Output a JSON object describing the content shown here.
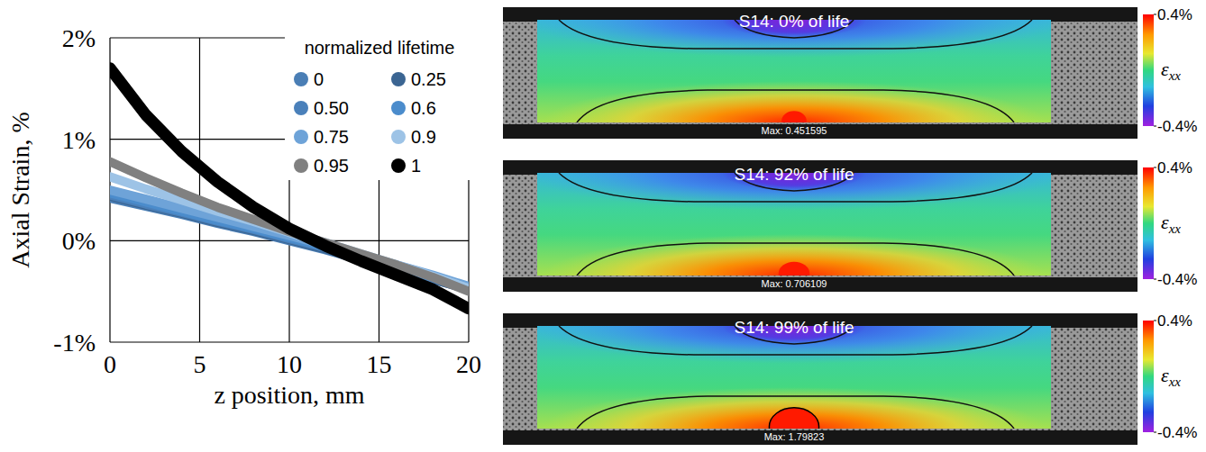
{
  "chart_data": {
    "type": "line",
    "x_label": "z position, mm",
    "y_label": "Axial Strain, %",
    "legend_title": "normalized lifetime",
    "x": [
      0,
      2,
      4,
      6,
      8,
      10,
      12,
      14,
      16,
      18,
      20
    ],
    "series": [
      {
        "name": "0",
        "color": "#4a7eb5",
        "values": [
          0.42,
          0.34,
          0.26,
          0.17,
          0.09,
          0.0,
          -0.09,
          -0.19,
          -0.29,
          -0.38,
          -0.48
        ]
      },
      {
        "name": "0.25",
        "color": "#3b6592",
        "values": [
          0.44,
          0.35,
          0.27,
          0.18,
          0.1,
          0.01,
          -0.08,
          -0.18,
          -0.28,
          -0.38,
          -0.48
        ]
      },
      {
        "name": "0.50",
        "color": "#4a80ba",
        "values": [
          0.45,
          0.36,
          0.28,
          0.19,
          0.11,
          0.02,
          -0.07,
          -0.17,
          -0.27,
          -0.37,
          -0.47
        ]
      },
      {
        "name": "0.6",
        "color": "#4b8ccc",
        "values": [
          0.47,
          0.38,
          0.29,
          0.2,
          0.12,
          0.03,
          -0.06,
          -0.16,
          -0.26,
          -0.36,
          -0.46
        ]
      },
      {
        "name": "0.75",
        "color": "#6ea3d8",
        "values": [
          0.5,
          0.41,
          0.32,
          0.23,
          0.14,
          0.05,
          -0.04,
          -0.14,
          -0.24,
          -0.34,
          -0.45
        ]
      },
      {
        "name": "0.9",
        "color": "#9dc3e6",
        "values": [
          0.63,
          0.51,
          0.4,
          0.29,
          0.19,
          0.08,
          -0.02,
          -0.13,
          -0.24,
          -0.35,
          -0.47
        ]
      },
      {
        "name": "0.95",
        "color": "#808080",
        "values": [
          0.78,
          0.62,
          0.47,
          0.33,
          0.21,
          0.09,
          -0.02,
          -0.13,
          -0.24,
          -0.36,
          -0.5
        ]
      },
      {
        "name": "1",
        "color": "#000000",
        "values": [
          1.7,
          1.24,
          0.88,
          0.58,
          0.33,
          0.12,
          -0.05,
          -0.2,
          -0.34,
          -0.48,
          -0.67
        ]
      }
    ],
    "xlim": [
      0,
      20
    ],
    "xticks": [
      0,
      5,
      10,
      15,
      20
    ],
    "ylim": [
      -1,
      2
    ],
    "yticks": [
      {
        "value": -1,
        "label": "-1%"
      },
      {
        "value": 0,
        "label": "0%"
      },
      {
        "value": 1,
        "label": "1%"
      },
      {
        "value": 2,
        "label": "2%"
      }
    ],
    "grid": true,
    "legend": "upper right",
    "marker": "circle",
    "line_style": "solid"
  },
  "dic_images": {
    "colorbar": {
      "label": "εxx",
      "range": [
        -0.4,
        0.4
      ],
      "ticks": [
        {
          "value": 0.4,
          "label": "0.4%"
        },
        {
          "value": -0.4,
          "label": "-0.4%"
        }
      ]
    },
    "panels": [
      {
        "title": "S14: 0% of life",
        "max": 0.451595,
        "max_label": "Max: 0.451595"
      },
      {
        "title": "S14: 92% of life",
        "max": 0.706109,
        "max_label": "Max: 0.706109"
      },
      {
        "title": "S14: 99% of life",
        "max": 1.79823,
        "max_label": "Max: 1.79823"
      }
    ]
  }
}
